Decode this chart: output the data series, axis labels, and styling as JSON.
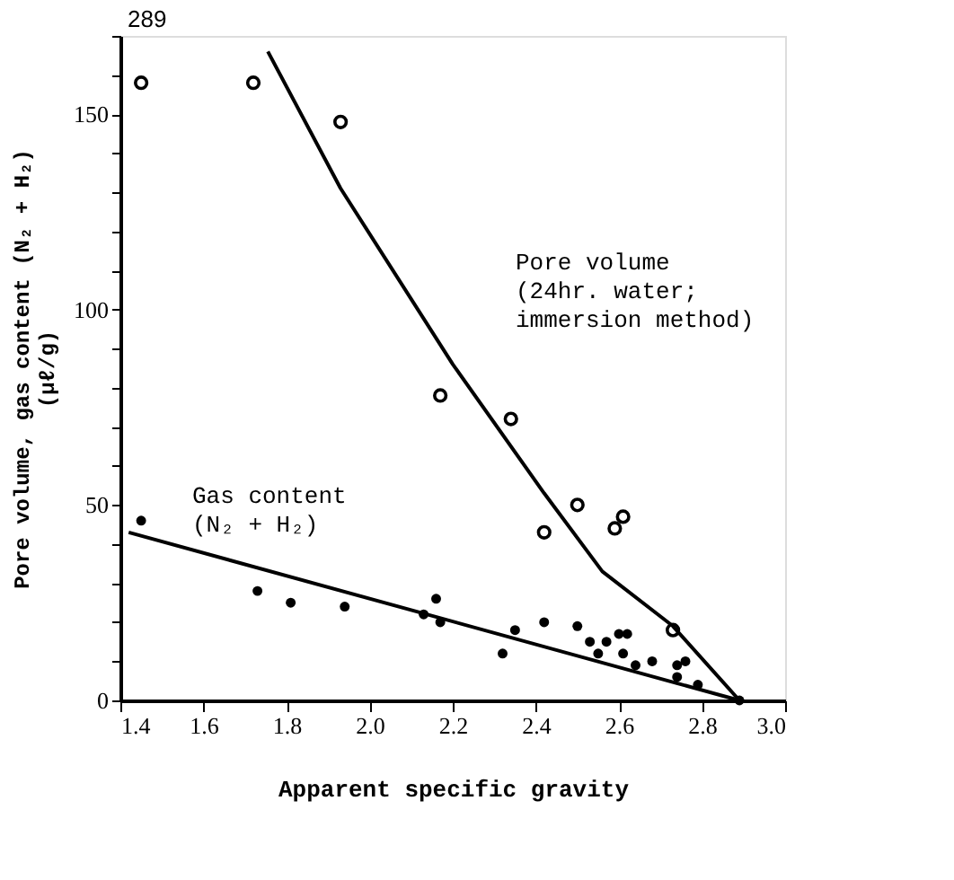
{
  "chart_data": {
    "type": "scatter",
    "xlabel": "Apparent specific gravity",
    "ylabel": "Pore volume, gas content (N₂ + H₂)\n(μℓ/g)",
    "xlim": [
      1.4,
      3.0
    ],
    "ylim": [
      0,
      170
    ],
    "xticks": [
      1.4,
      1.6,
      1.8,
      {
        "value": 2.0,
        "label": "2.0"
      },
      2.2,
      2.4,
      2.6,
      2.8,
      {
        "value": 3.0,
        "label": "3.0"
      }
    ],
    "yticks": [
      0,
      {
        "value": 10,
        "label": null
      },
      {
        "value": 20,
        "label": null
      },
      {
        "value": 30,
        "label": null
      },
      {
        "value": 40,
        "label": null
      },
      50,
      {
        "value": 60,
        "label": null
      },
      {
        "value": 70,
        "label": null
      },
      {
        "value": 80,
        "label": null
      },
      {
        "value": 90,
        "label": null
      },
      100,
      {
        "value": 110,
        "label": null
      },
      {
        "value": 120,
        "label": null
      },
      {
        "value": 130,
        "label": null
      },
      {
        "value": 140,
        "label": null
      },
      150,
      {
        "value": 160,
        "label": null
      },
      {
        "value": 170,
        "label": null
      }
    ],
    "grid": false,
    "series": [
      {
        "marker": "circle",
        "color": "#000000",
        "x": [
          1.45,
          1.72,
          1.93,
          2.17,
          2.34,
          2.42,
          2.5,
          2.59,
          2.61,
          2.73
        ],
        "values": [
          158,
          158,
          148,
          78,
          72,
          43,
          50,
          44,
          47,
          18
        ]
      },
      {
        "marker": "circle",
        "color": "#000000",
        "x": [
          1.45,
          1.73,
          1.81,
          1.94,
          2.13,
          2.16,
          2.17,
          2.32,
          2.35,
          2.42,
          2.5,
          2.53,
          2.55,
          2.57,
          2.6,
          2.62,
          2.61,
          2.64,
          2.68,
          2.74,
          2.76,
          2.74,
          2.79,
          2.89
        ],
        "values": [
          46,
          28,
          25,
          24,
          22,
          26,
          20,
          12,
          18,
          20,
          19,
          15,
          12,
          15,
          17,
          17,
          12,
          9,
          10,
          9,
          10,
          6,
          4,
          0
        ]
      },
      {
        "type": "line",
        "color": "#000000",
        "x": [
          1.755,
          1.93,
          2.2,
          2.42,
          2.56,
          2.73,
          2.89
        ],
        "values": [
          166,
          131,
          86,
          53,
          33,
          19,
          0
        ]
      },
      {
        "type": "line",
        "color": "#000000",
        "x": [
          1.42,
          2.89
        ],
        "values": [
          43,
          0
        ]
      }
    ],
    "annotations": [
      "289",
      "Pore volume\n  (24hr. water;\n   immersion method)",
      "Gas content\n  (N₂ + H₂)"
    ]
  }
}
